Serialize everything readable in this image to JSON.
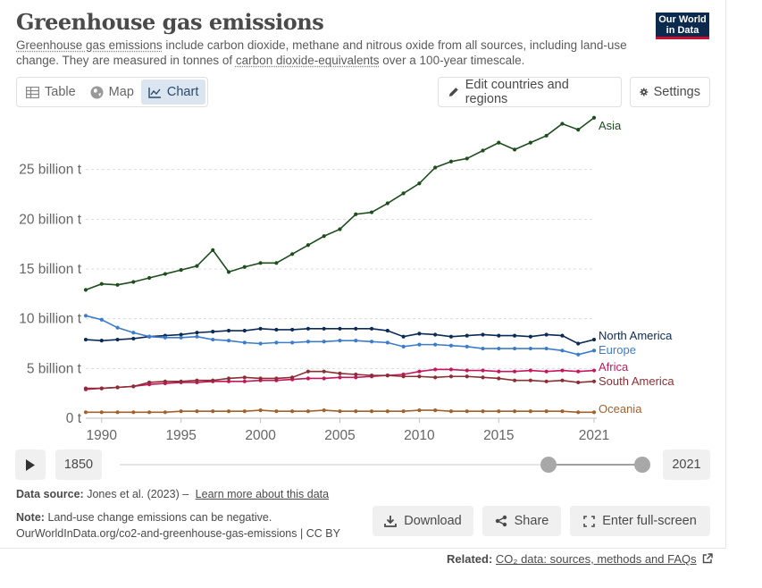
{
  "header": {
    "title": "Greenhouse gas emissions",
    "subtitle_link1": "Greenhouse gas emissions",
    "subtitle_part1": " include carbon dioxide, methane and nitrous oxide from all sources, including land-use change. They are measured in tonnes of ",
    "subtitle_link2": "carbon dioxide-equivalents",
    "subtitle_part2": " over a 100-year timescale.",
    "logo_line1": "Our World",
    "logo_line2": "in Data"
  },
  "tabs": [
    {
      "label": "Table",
      "icon": "table-icon"
    },
    {
      "label": "Map",
      "icon": "globe-icon"
    },
    {
      "label": "Chart",
      "icon": "line-chart-icon",
      "active": true
    }
  ],
  "controls": {
    "edit_label": "Edit countries and regions",
    "settings_label": "Settings"
  },
  "chart_data": {
    "type": "line",
    "title": "",
    "xlabel": "",
    "ylabel": "",
    "ylim": [
      0,
      30000000000
    ],
    "xlim": [
      1989,
      2021
    ],
    "yticks": [
      {
        "value": 0,
        "label": "0 t"
      },
      {
        "value": 5000000000,
        "label": "5 billion t"
      },
      {
        "value": 10000000000,
        "label": "10 billion t"
      },
      {
        "value": 15000000000,
        "label": "15 billion t"
      },
      {
        "value": 20000000000,
        "label": "20 billion t"
      },
      {
        "value": 25000000000,
        "label": "25 billion t"
      }
    ],
    "xticks": [
      1990,
      1995,
      2000,
      2005,
      2010,
      2015,
      2021
    ],
    "x": [
      1989,
      1990,
      1991,
      1992,
      1993,
      1994,
      1995,
      1996,
      1997,
      1998,
      1999,
      2000,
      2001,
      2002,
      2003,
      2004,
      2005,
      2006,
      2007,
      2008,
      2009,
      2010,
      2011,
      2012,
      2013,
      2014,
      2015,
      2016,
      2017,
      2018,
      2019,
      2020,
      2021
    ],
    "grid": "horizontal dashed",
    "legend": "line-end labels",
    "series": [
      {
        "name": "Asia",
        "color": "#1e4d1e",
        "values": [
          12.9,
          13.5,
          13.4,
          13.7,
          14.1,
          14.5,
          14.9,
          15.3,
          16.9,
          14.7,
          15.2,
          15.6,
          15.6,
          16.5,
          17.4,
          18.3,
          19.0,
          20.5,
          20.7,
          21.6,
          22.6,
          23.6,
          25.2,
          25.8,
          26.1,
          26.9,
          27.7,
          27.0,
          27.7,
          28.4,
          29.6,
          29.0,
          30.2
        ]
      },
      {
        "name": "North America",
        "color": "#0b2a55",
        "values": [
          7.9,
          7.8,
          7.9,
          8.0,
          8.2,
          8.3,
          8.4,
          8.6,
          8.7,
          8.8,
          8.8,
          9.0,
          8.9,
          8.9,
          9.0,
          9.0,
          9.0,
          9.0,
          9.0,
          8.8,
          8.2,
          8.5,
          8.4,
          8.2,
          8.3,
          8.4,
          8.3,
          8.3,
          8.2,
          8.4,
          8.3,
          7.5,
          7.9
        ]
      },
      {
        "name": "Europe",
        "color": "#3d7cc9",
        "values": [
          10.3,
          9.9,
          9.1,
          8.6,
          8.2,
          8.1,
          8.1,
          8.2,
          7.9,
          7.8,
          7.6,
          7.5,
          7.6,
          7.6,
          7.7,
          7.7,
          7.8,
          7.8,
          7.7,
          7.6,
          7.2,
          7.4,
          7.4,
          7.3,
          7.2,
          7.0,
          7.0,
          7.0,
          7.0,
          7.0,
          6.8,
          6.4,
          6.8
        ]
      },
      {
        "name": "Africa",
        "color": "#c2185b",
        "values": [
          2.9,
          3.0,
          3.1,
          3.2,
          3.4,
          3.5,
          3.6,
          3.6,
          3.7,
          3.7,
          3.7,
          3.8,
          3.8,
          3.9,
          4.0,
          4.0,
          4.1,
          4.1,
          4.2,
          4.3,
          4.4,
          4.7,
          4.9,
          4.9,
          4.8,
          4.8,
          4.7,
          4.7,
          4.8,
          4.7,
          4.8,
          4.7,
          4.8
        ]
      },
      {
        "name": "South America",
        "color": "#8b2e35",
        "values": [
          3.0,
          3.0,
          3.1,
          3.2,
          3.6,
          3.7,
          3.7,
          3.8,
          3.8,
          4.0,
          4.1,
          4.0,
          4.0,
          4.1,
          4.7,
          4.7,
          4.5,
          4.4,
          4.3,
          4.3,
          4.2,
          4.2,
          4.1,
          4.2,
          4.2,
          4.1,
          4.0,
          3.8,
          3.8,
          3.7,
          3.8,
          3.6,
          3.7
        ]
      },
      {
        "name": "Oceania",
        "color": "#a0622d",
        "values": [
          0.6,
          0.6,
          0.6,
          0.6,
          0.6,
          0.6,
          0.7,
          0.7,
          0.7,
          0.7,
          0.7,
          0.8,
          0.7,
          0.7,
          0.7,
          0.8,
          0.7,
          0.7,
          0.7,
          0.7,
          0.7,
          0.8,
          0.8,
          0.7,
          0.7,
          0.7,
          0.7,
          0.7,
          0.7,
          0.7,
          0.7,
          0.6,
          0.6
        ]
      }
    ],
    "value_unit_multiplier": 1000000000
  },
  "timeline": {
    "start_label": "1850",
    "end_label": "2021",
    "play_icon": "play-icon"
  },
  "footer": {
    "source_label": "Data source:",
    "source_text": "Jones et al. (2023) –",
    "source_link": "Learn more about this data",
    "note_label": "Note:",
    "note_text": "Land-use change emissions can be negative.",
    "url_text": "OurWorldInData.org/co2-and-greenhouse-gas-emissions | CC BY",
    "download_label": "Download",
    "share_label": "Share",
    "fullscreen_label": "Enter full-screen",
    "related_label": "Related:",
    "related_link": "CO₂ data: sources, methods and FAQs"
  }
}
